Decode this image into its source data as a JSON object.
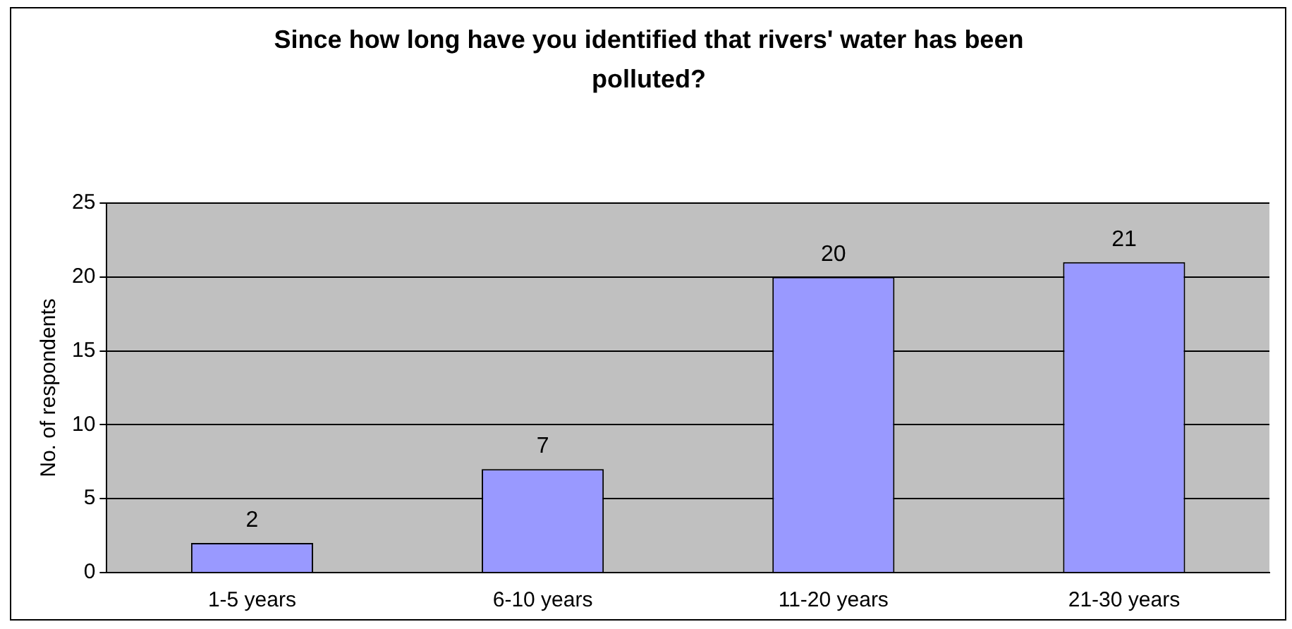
{
  "chart_data": {
    "type": "bar",
    "title": "Since how long have you identified that rivers' water has been polluted?",
    "ylabel": "No. of respondents",
    "categories": [
      "1-5 years",
      "6-10 years",
      "11-20 years",
      "21-30 years"
    ],
    "values": [
      2,
      7,
      20,
      21
    ],
    "color": "#9999ff",
    "ylim": [
      0,
      25
    ],
    "yticks": [
      0,
      5,
      10,
      15,
      20,
      25
    ],
    "grid": "y",
    "data_labels": true
  }
}
